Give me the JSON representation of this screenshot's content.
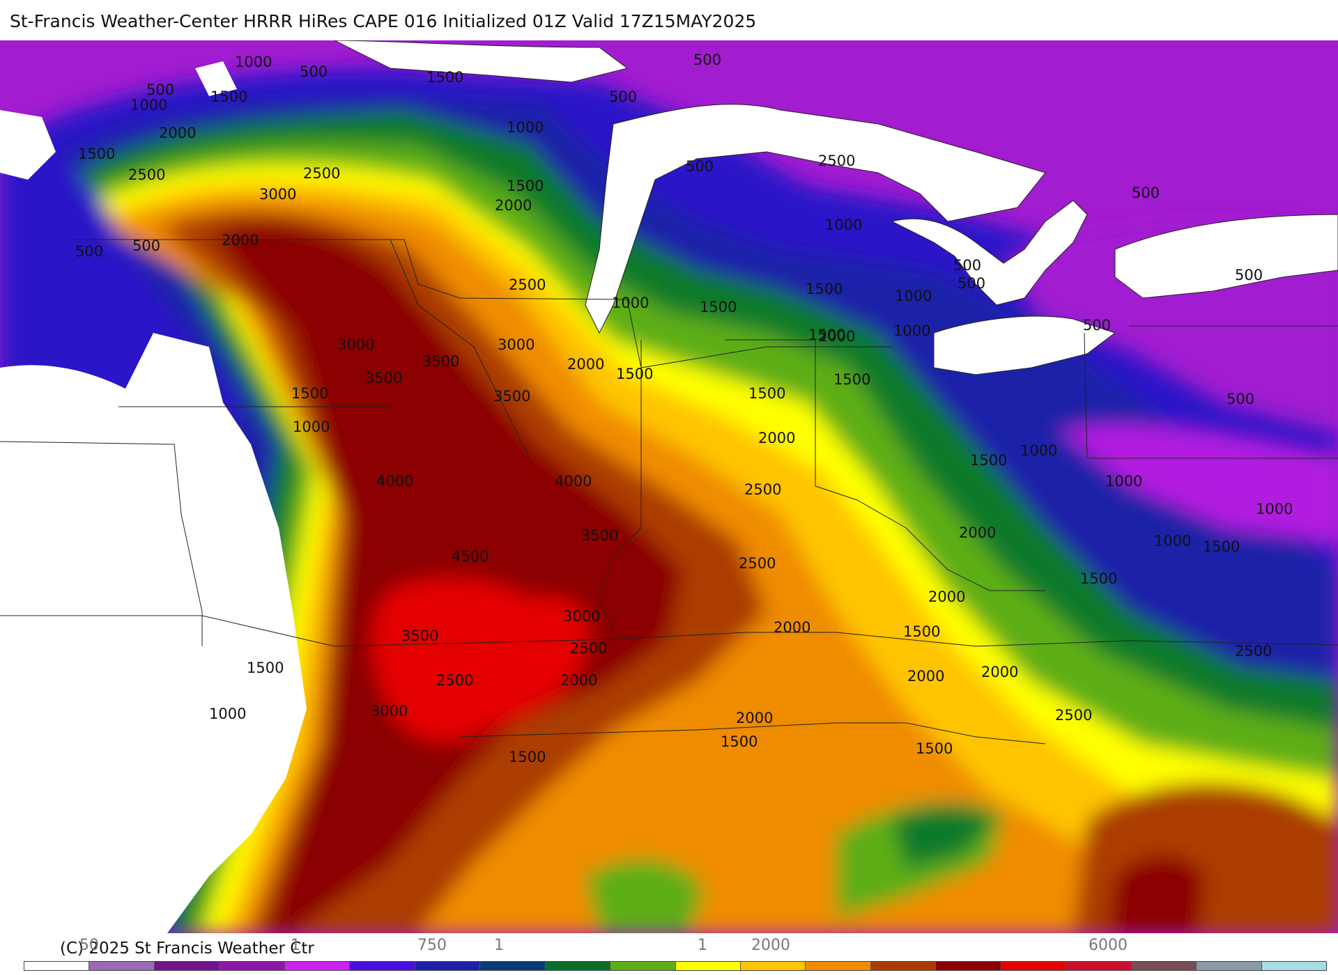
{
  "header": {
    "title": "St-Francis Weather-Center HRRR HiRes CAPE  016 Initialized  01Z Valid 17Z15MAY2025"
  },
  "footer": {
    "copyright": "(C) 2025 St Francis Weather Ctr"
  },
  "legend": {
    "visible_ticks": [
      "750",
      "2000",
      "6000"
    ],
    "partially_visible_ticks": [
      "50",
      "1",
      "1",
      "1"
    ],
    "colors": [
      "#ffffff",
      "#9a6ab8",
      "#74138e",
      "#8d16a6",
      "#cc22f0",
      "#4a10e0",
      "#1b22a8",
      "#0a3a78",
      "#0b6e2a",
      "#5dae16",
      "#ffff00",
      "#ffc400",
      "#ef8c00",
      "#ab3c00",
      "#8b0000",
      "#e40000",
      "#c8102e",
      "#7a4e54",
      "#8a9aa2",
      "#a8dce6"
    ]
  },
  "map": {
    "field": "CAPE",
    "contour_labels": [
      "1000",
      "500",
      "1500",
      "500",
      "1500",
      "500",
      "1000",
      "2000",
      "1000",
      "1500",
      "2500",
      "500",
      "500",
      "2500",
      "1500",
      "3000",
      "2000",
      "2500",
      "500",
      "2000",
      "500",
      "500",
      "1000",
      "500",
      "1500",
      "500",
      "1000",
      "500",
      "1500",
      "2500",
      "1000",
      "1000",
      "1500",
      "2000",
      "500",
      "3000",
      "3000",
      "2000",
      "1500",
      "3500",
      "3500",
      "1500",
      "1500",
      "3500",
      "1500",
      "2000",
      "1000",
      "4000",
      "4000",
      "2500",
      "1000",
      "1500",
      "500",
      "3500",
      "1000",
      "1000",
      "2000",
      "4500",
      "1000",
      "1500",
      "2500",
      "1500",
      "3000",
      "2000",
      "3500",
      "2500",
      "2000",
      "1500",
      "2500",
      "2000",
      "2000",
      "1500",
      "2500",
      "1000",
      "3000",
      "2000",
      "2000",
      "2500",
      "1500",
      "1500",
      "1500"
    ]
  }
}
